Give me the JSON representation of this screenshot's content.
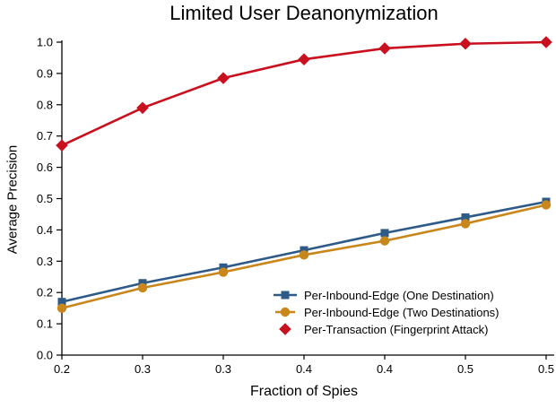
{
  "chart_data": {
    "type": "line",
    "title": "Limited User Deanonymization",
    "xlabel": "Fraction of Spies",
    "ylabel": "Average Precision",
    "x": [
      0.2,
      0.25,
      0.3,
      0.35,
      0.4,
      0.45,
      0.5
    ],
    "x_tick_labels": [
      "0.2",
      "0.3",
      "0.3",
      "0.4",
      "0.4",
      "0.5",
      "0.5"
    ],
    "y_ticks": [
      0.0,
      0.1,
      0.2,
      0.3,
      0.4,
      0.5,
      0.6,
      0.7,
      0.8,
      0.9,
      1.0
    ],
    "y_tick_labels": [
      "0.0",
      "0.1",
      "0.2",
      "0.3",
      "0.4",
      "0.5",
      "0.6",
      "0.7",
      "0.8",
      "0.9",
      "1.0"
    ],
    "xlim": [
      0.2,
      0.5
    ],
    "ylim": [
      0.0,
      1.0
    ],
    "grid": false,
    "legend_position": "lower-right-inside",
    "axis_color": "#000000",
    "series": [
      {
        "name": "Per-Inbound-Edge (One Destination)",
        "marker": "square",
        "color": "#2E5A88",
        "values": [
          0.17,
          0.23,
          0.28,
          0.335,
          0.39,
          0.44,
          0.49
        ]
      },
      {
        "name": "Per-Inbound-Edge (Two Destinations)",
        "marker": "circle",
        "color": "#C8861B",
        "values": [
          0.15,
          0.215,
          0.265,
          0.32,
          0.365,
          0.42,
          0.48
        ]
      },
      {
        "name": "Per-Transaction (Fingerprint Attack)",
        "marker": "diamond",
        "color": "#C9101E",
        "values": [
          0.67,
          0.79,
          0.885,
          0.945,
          0.98,
          0.995,
          1.0
        ]
      }
    ]
  }
}
